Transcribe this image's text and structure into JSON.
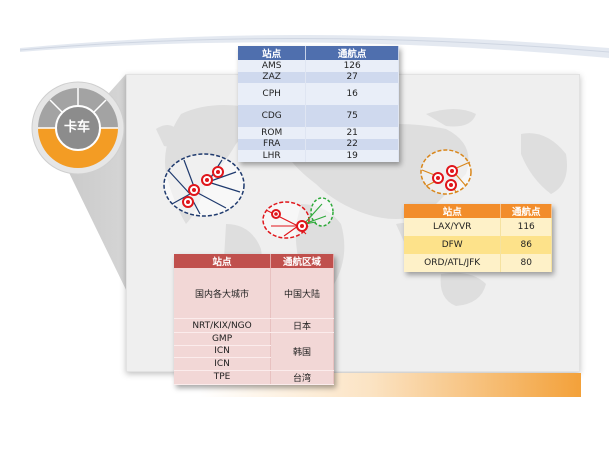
{
  "hub_label": "卡车",
  "colors": {
    "europe": "#1f3a6e",
    "asia": "#e0161b",
    "asia2": "#2eaa3a",
    "americas": "#d9861a",
    "ring_gray": "#9a9a9a",
    "ring_orange": "#f39c24"
  },
  "europe_table": {
    "headers": [
      "站点",
      "通航点"
    ],
    "rows": [
      [
        "AMS",
        "126"
      ],
      [
        "ZAZ",
        "27"
      ],
      [
        "CPH",
        "16"
      ],
      [
        "CDG",
        "75"
      ],
      [
        "ROM",
        "21"
      ],
      [
        "FRA",
        "22"
      ],
      [
        "LHR",
        "19"
      ]
    ]
  },
  "americas_table": {
    "headers": [
      "站点",
      "通航点"
    ],
    "rows": [
      [
        "LAX/YVR",
        "116"
      ],
      [
        "DFW",
        "86"
      ],
      [
        "ORD/ATL/JFK",
        "80"
      ]
    ]
  },
  "asia_table": {
    "headers": [
      "站点",
      "通航区域"
    ],
    "rows": [
      {
        "station": "国内各大城市",
        "region": "中国大陆"
      },
      {
        "station": "NRT/KIX/NGO",
        "region": "日本"
      },
      {
        "station": "GMP",
        "region": "韩国"
      },
      {
        "station": "ICN"
      },
      {
        "station": "ICN"
      },
      {
        "station": "TPE",
        "region": "台湾"
      }
    ]
  }
}
